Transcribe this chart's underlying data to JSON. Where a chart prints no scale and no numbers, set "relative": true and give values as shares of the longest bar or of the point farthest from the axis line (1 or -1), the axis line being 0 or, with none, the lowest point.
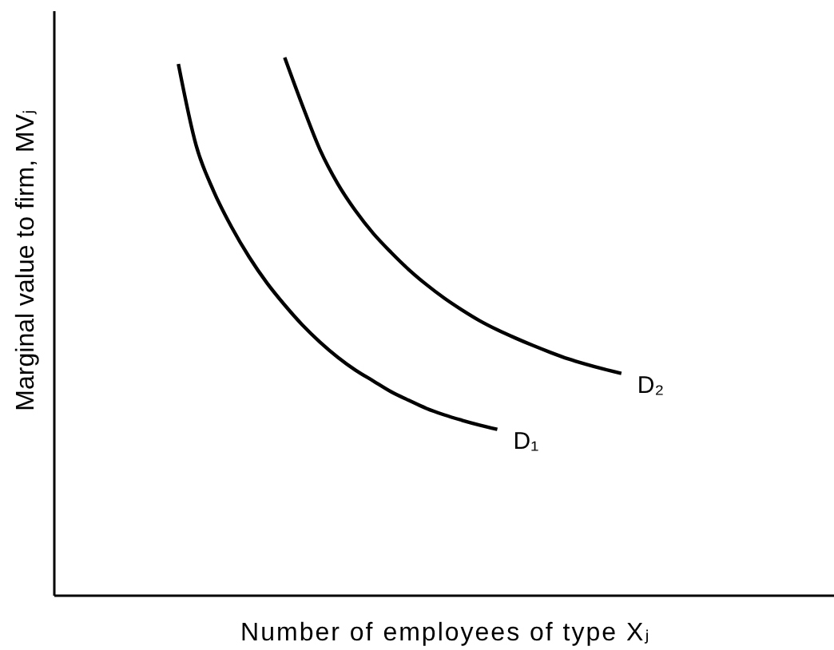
{
  "chart_data": {
    "type": "line",
    "relative": true,
    "xlabel": "Number of employees of type Xⱼ",
    "ylabel": "Marginal value to firm, MVⱼ",
    "categories": [
      null,
      null,
      null,
      null,
      null,
      null,
      null,
      null,
      null,
      null,
      null,
      null,
      null,
      null,
      null,
      null,
      null,
      null,
      null,
      null,
      null,
      null,
      null,
      null,
      null,
      null,
      null,
      null,
      null,
      null,
      null,
      null,
      null,
      null,
      null,
      null,
      null,
      null,
      null,
      null,
      null,
      null,
      null,
      null,
      null
    ],
    "series": [
      {
        "name": "D₁",
        "color": "#000000",
        "values": [
          null,
          null,
          null,
          null,
          null,
          null,
          null,
          0.988,
          0.837,
          0.751,
          0.685,
          0.629,
          0.581,
          0.54,
          0.503,
          0.471,
          0.443,
          0.419,
          0.399,
          0.379,
          0.363,
          0.348,
          0.336,
          0.326,
          0.317,
          0.309,
          null,
          null,
          null,
          null,
          null,
          null,
          null,
          null,
          null,
          null,
          null,
          null,
          null,
          null,
          null,
          null,
          null,
          null,
          null
        ]
      },
      {
        "name": "D₂",
        "color": "#000000",
        "values": [
          null,
          null,
          null,
          null,
          null,
          null,
          null,
          null,
          null,
          null,
          null,
          null,
          null,
          1,
          0.911,
          0.828,
          0.765,
          0.715,
          0.673,
          0.638,
          0.606,
          0.578,
          0.553,
          0.531,
          0.511,
          0.494,
          0.479,
          0.465,
          0.452,
          0.44,
          0.43,
          0.421,
          0.413,
          null,
          null,
          null,
          null,
          null,
          null,
          null,
          null,
          null,
          null,
          null,
          null
        ]
      }
    ]
  }
}
